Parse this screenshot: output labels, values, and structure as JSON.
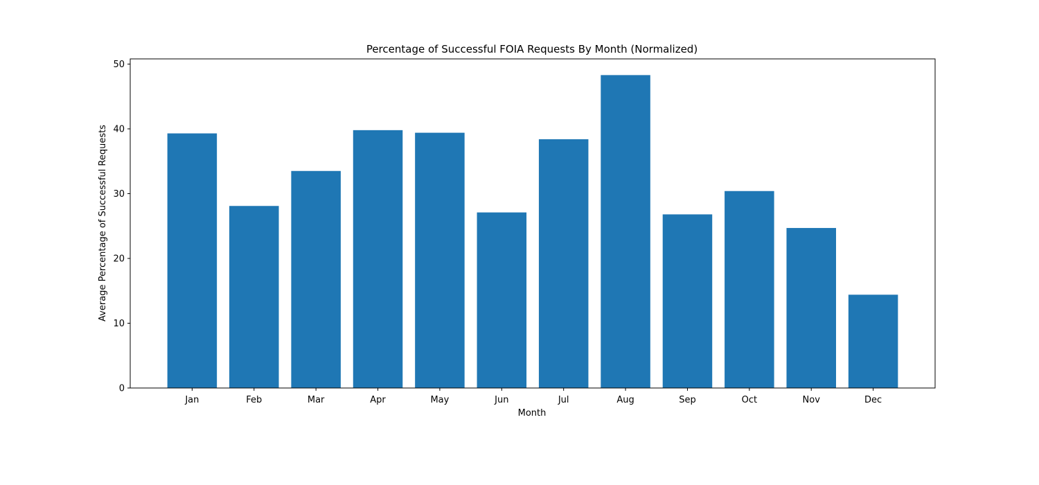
{
  "chart_data": {
    "type": "bar",
    "title": "Percentage of Successful FOIA Requests By Month (Normalized)",
    "xlabel": "Month",
    "ylabel": "Average Percentage of Successful Requests",
    "categories": [
      "Jan",
      "Feb",
      "Mar",
      "Apr",
      "May",
      "Jun",
      "Jul",
      "Aug",
      "Sep",
      "Oct",
      "Nov",
      "Dec"
    ],
    "values": [
      39.3,
      28.1,
      33.5,
      39.8,
      39.4,
      27.1,
      38.4,
      48.3,
      26.8,
      30.4,
      24.7,
      14.4
    ],
    "ylim": [
      0,
      50.8
    ],
    "yticks": [
      0,
      10,
      20,
      30,
      40,
      50
    ],
    "grid": false,
    "bar_color": "#1f77b4"
  }
}
